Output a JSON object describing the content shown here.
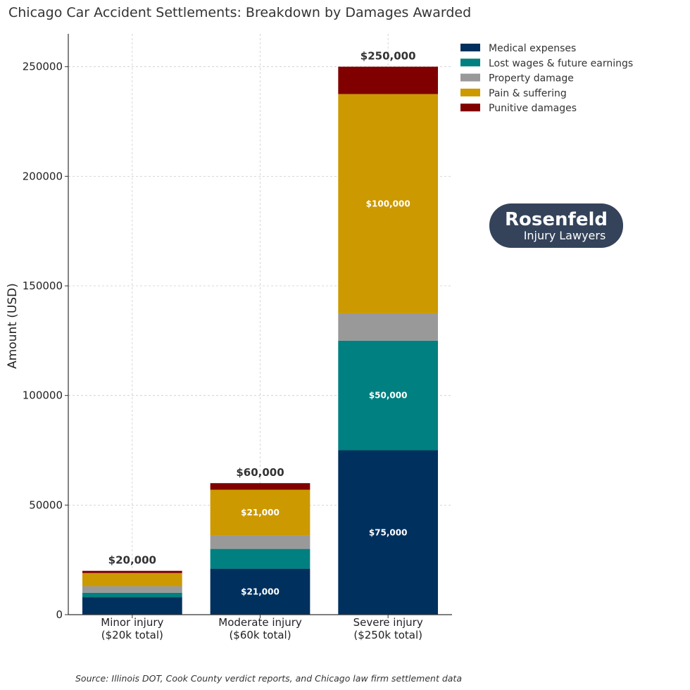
{
  "chart_data": {
    "type": "bar",
    "stacked": true,
    "title": "Chicago Car Accident Settlements: Breakdown by Damages Awarded",
    "xlabel": "",
    "ylabel": "Amount (USD)",
    "ylim": [
      0,
      265000
    ],
    "yticks": [
      0,
      50000,
      100000,
      150000,
      200000,
      250000
    ],
    "grid": true,
    "legend_position": "top-right, outside plot",
    "categories": [
      [
        "Minor injury",
        "($20k total)"
      ],
      [
        "Moderate injury",
        "($60k total)"
      ],
      [
        "Severe injury",
        "($250k total)"
      ]
    ],
    "series": [
      {
        "name": "Medical expenses",
        "color": "#00305e",
        "values": [
          8000,
          21000,
          75000
        ]
      },
      {
        "name": "Lost wages & future earnings",
        "color": "#008080",
        "values": [
          2000,
          9000,
          50000
        ]
      },
      {
        "name": "Property damage",
        "color": "#999999",
        "values": [
          3000,
          6000,
          12500
        ]
      },
      {
        "name": "Pain & suffering",
        "color": "#cc9900",
        "values": [
          6000,
          21000,
          100000
        ]
      },
      {
        "name": "Punitive damages",
        "color": "#800000",
        "values": [
          1000,
          3000,
          12500
        ]
      }
    ],
    "totals": [
      "$20,000",
      "$60,000",
      "$250,000"
    ],
    "segment_labels": [
      {
        "category": 1,
        "series": 0,
        "text": "$21,000"
      },
      {
        "category": 1,
        "series": 3,
        "text": "$21,000"
      },
      {
        "category": 2,
        "series": 0,
        "text": "$75,000"
      },
      {
        "category": 2,
        "series": 1,
        "text": "$50,000"
      },
      {
        "category": 2,
        "series": 3,
        "text": "$100,000"
      }
    ],
    "source": "Source: Illinois DOT, Cook County verdict reports, and Chicago law firm settlement data"
  },
  "logo": {
    "line1": "Rosenfeld",
    "line2": "Injury Lawyers",
    "bg_color": "#34435a"
  }
}
